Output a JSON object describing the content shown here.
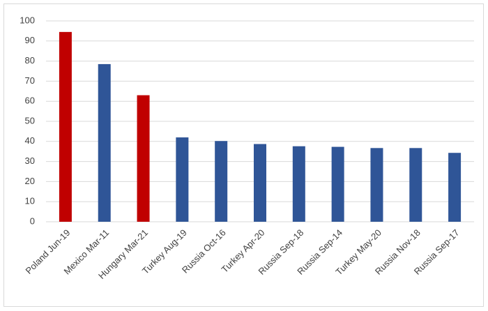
{
  "chart_data": {
    "type": "bar",
    "categories": [
      "Poland Jun-19",
      "Mexico Mar-11",
      "Hungary Mar-21",
      "Turkey Aug-19",
      "Russia Oct-16",
      "Turkey Apr-20",
      "Russia Sep-18",
      "Russia Sep-14",
      "Turkey May-20",
      "Russia Nov-18",
      "Russia Sep-17"
    ],
    "values": [
      94.5,
      78.5,
      63,
      42,
      40.2,
      38.7,
      37.6,
      37.3,
      36.7,
      36.7,
      34.3
    ],
    "colors": [
      "#c00000",
      "#2f5597",
      "#c00000",
      "#2f5597",
      "#2f5597",
      "#2f5597",
      "#2f5597",
      "#2f5597",
      "#2f5597",
      "#2f5597",
      "#2f5597"
    ],
    "ylim": [
      0,
      100
    ],
    "yticks": [
      0,
      10,
      20,
      30,
      40,
      50,
      60,
      70,
      80,
      90,
      100
    ],
    "grid": true
  }
}
